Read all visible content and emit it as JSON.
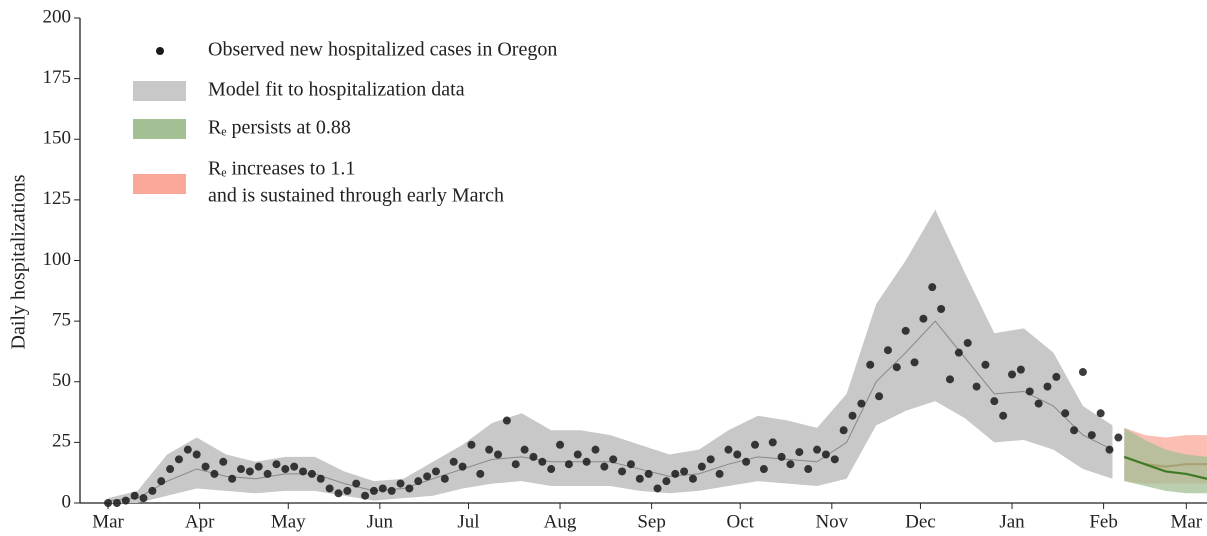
{
  "chart_data": {
    "type": "scatter",
    "ylabel": "Daily hospitalizations",
    "xlim": [
      -9.5,
      372
    ],
    "ylim": [
      0,
      200
    ],
    "yticks": [
      0,
      25,
      50,
      75,
      100,
      125,
      150,
      175,
      200
    ],
    "xticks": [
      {
        "value": 0,
        "label": "Mar"
      },
      {
        "value": 31,
        "label": "Apr"
      },
      {
        "value": 61,
        "label": "May"
      },
      {
        "value": 92,
        "label": "Jun"
      },
      {
        "value": 122,
        "label": "Jul"
      },
      {
        "value": 153,
        "label": "Aug"
      },
      {
        "value": 184,
        "label": "Sep"
      },
      {
        "value": 214,
        "label": "Oct"
      },
      {
        "value": 245,
        "label": "Nov"
      },
      {
        "value": 275,
        "label": "Dec"
      },
      {
        "value": 306,
        "label": "Jan"
      },
      {
        "value": 337,
        "label": "Feb"
      },
      {
        "value": 365,
        "label": "Mar"
      }
    ],
    "series": [
      {
        "name": "Model fit to hospitalization data",
        "kind": "band",
        "color": "#c8c8c8",
        "line_color": "#888888",
        "x": [
          0,
          10,
          20,
          30,
          40,
          50,
          60,
          70,
          80,
          90,
          100,
          110,
          120,
          130,
          140,
          150,
          160,
          170,
          180,
          190,
          200,
          210,
          220,
          230,
          240,
          250,
          260,
          270,
          280,
          290,
          300,
          310,
          320,
          330,
          340
        ],
        "values": [
          1,
          2,
          9,
          14,
          11,
          10,
          12,
          12,
          8,
          5,
          6,
          10,
          14,
          18,
          19,
          17,
          17,
          17,
          14,
          11,
          12,
          16,
          19,
          18,
          17,
          25,
          50,
          62,
          75,
          60,
          45,
          46,
          40,
          28,
          22
        ],
        "upper": [
          2,
          5,
          20,
          27,
          20,
          17,
          19,
          19,
          13,
          9,
          10,
          17,
          24,
          33,
          37,
          30,
          30,
          28,
          24,
          20,
          22,
          30,
          36,
          34,
          31,
          45,
          82,
          100,
          121,
          95,
          70,
          72,
          62,
          40,
          32
        ],
        "lower": [
          0,
          0,
          3,
          6,
          5,
          4,
          5,
          5,
          3,
          1,
          2,
          3,
          6,
          8,
          9,
          7,
          7,
          7,
          5,
          4,
          5,
          7,
          9,
          8,
          7,
          10,
          32,
          38,
          42,
          35,
          25,
          26,
          22,
          14,
          10
        ]
      },
      {
        "name": [
          "Rₑ increases to 1.1",
          "and is sustained through early March"
        ],
        "kind": "band",
        "color": "#f9a899",
        "line_color": "#c0471c",
        "x": [
          344,
          351,
          358,
          365,
          372
        ],
        "values": [
          19,
          16,
          15,
          16,
          16
        ],
        "upper": [
          31,
          28,
          27,
          28,
          28
        ],
        "lower": [
          9,
          8,
          8,
          8,
          8
        ]
      },
      {
        "name": "Rₑ persists at 0.88",
        "kind": "band",
        "color": "#a3bf94",
        "line_color": "#3f7a24",
        "x": [
          344,
          351,
          358,
          365,
          372
        ],
        "values": [
          19,
          16,
          13,
          12,
          10
        ],
        "upper": [
          31,
          26,
          22,
          20,
          19
        ],
        "lower": [
          9,
          7,
          5,
          4,
          4
        ]
      },
      {
        "name": "Observed new hospitalized cases in Oregon",
        "kind": "points",
        "color": "#1a1a1a",
        "x": [
          0,
          3,
          6,
          9,
          12,
          15,
          18,
          21,
          24,
          27,
          30,
          33,
          36,
          39,
          42,
          45,
          48,
          51,
          54,
          57,
          60,
          63,
          66,
          69,
          72,
          75,
          78,
          81,
          84,
          87,
          90,
          93,
          96,
          99,
          102,
          105,
          108,
          111,
          114,
          117,
          120,
          123,
          126,
          129,
          132,
          135,
          138,
          141,
          144,
          147,
          150,
          153,
          156,
          159,
          162,
          165,
          168,
          171,
          174,
          177,
          180,
          183,
          186,
          189,
          192,
          195,
          198,
          201,
          204,
          207,
          210,
          213,
          216,
          219,
          222,
          225,
          228,
          231,
          234,
          237,
          240,
          243,
          246,
          249,
          252,
          255,
          258,
          261,
          264,
          267,
          270,
          273,
          276,
          279,
          282,
          285,
          288,
          291,
          294,
          297,
          300,
          303,
          306,
          309,
          312,
          315,
          318,
          321,
          324,
          327,
          330,
          333,
          336,
          339,
          342
        ],
        "values": [
          0,
          0,
          1,
          3,
          2,
          5,
          9,
          14,
          18,
          22,
          20,
          15,
          12,
          17,
          10,
          14,
          13,
          15,
          12,
          16,
          14,
          15,
          13,
          12,
          10,
          6,
          4,
          5,
          8,
          3,
          5,
          6,
          5,
          8,
          6,
          9,
          11,
          13,
          10,
          17,
          15,
          24,
          12,
          22,
          20,
          34,
          16,
          22,
          19,
          17,
          14,
          24,
          16,
          20,
          17,
          22,
          15,
          18,
          13,
          16,
          10,
          12,
          6,
          9,
          12,
          13,
          10,
          15,
          18,
          12,
          22,
          20,
          17,
          24,
          14,
          25,
          19,
          16,
          21,
          14,
          22,
          20,
          18,
          30,
          36,
          41,
          57,
          44,
          63,
          56,
          71,
          58,
          76,
          89,
          80,
          51,
          62,
          66,
          48,
          57,
          42,
          36,
          53,
          55,
          46,
          41,
          48,
          52,
          37,
          30,
          54,
          28,
          37,
          22,
          27
        ]
      }
    ]
  }
}
